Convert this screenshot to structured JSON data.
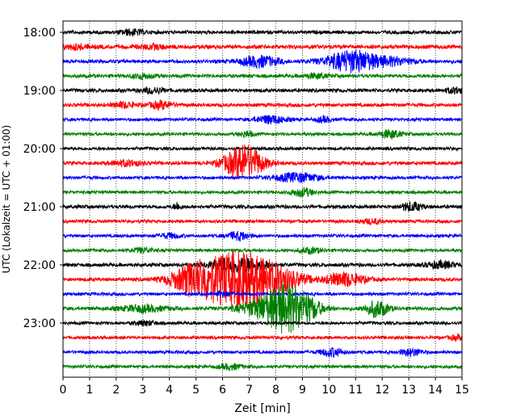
{
  "chart_data": {
    "type": "line",
    "title": "",
    "xlabel": "Zeit  [min]",
    "ylabel": "UTC (Lokalzeit = UTC + 01:00)",
    "xlim": [
      0,
      15
    ],
    "x_ticks": [
      0,
      1,
      2,
      3,
      4,
      5,
      6,
      7,
      8,
      9,
      10,
      11,
      12,
      13,
      14,
      15
    ],
    "x_tick_labels": [
      "0",
      "1",
      "2",
      "3",
      "4",
      "5",
      "6",
      "7",
      "8",
      "9",
      "10",
      "11",
      "12",
      "13",
      "14",
      "15"
    ],
    "y_tick_labels": [
      "18:00",
      "19:00",
      "20:00",
      "21:00",
      "22:00",
      "23:00"
    ],
    "grid": {
      "x": true,
      "style": "dotted"
    },
    "row_colors": [
      "#000000",
      "#ff0000",
      "#0000ff",
      "#008000"
    ],
    "traces": [
      {
        "time": "18:00",
        "noise": 0.3,
        "bursts": [
          [
            2.6,
            0.6,
            0.3
          ]
        ]
      },
      {
        "time": "18:15",
        "noise": 0.35,
        "bursts": [
          [
            0.5,
            0.5,
            0.3
          ],
          [
            3.4,
            0.4,
            0.4
          ]
        ]
      },
      {
        "time": "18:30",
        "noise": 0.3,
        "bursts": [
          [
            7.4,
            1.2,
            0.5
          ],
          [
            10.9,
            2.4,
            0.7
          ],
          [
            12.5,
            0.7,
            0.5
          ]
        ]
      },
      {
        "time": "18:45",
        "noise": 0.3,
        "bursts": [
          [
            3.0,
            0.5,
            0.3
          ],
          [
            9.5,
            0.5,
            0.3
          ]
        ]
      },
      {
        "time": "19:00",
        "noise": 0.3,
        "bursts": [
          [
            3.4,
            0.6,
            0.3
          ],
          [
            14.8,
            0.6,
            0.3
          ]
        ]
      },
      {
        "time": "19:15",
        "noise": 0.3,
        "bursts": [
          [
            2.3,
            0.6,
            0.3
          ],
          [
            3.7,
            0.8,
            0.3
          ]
        ]
      },
      {
        "time": "19:30",
        "noise": 0.25,
        "bursts": [
          [
            7.8,
            0.9,
            0.4
          ],
          [
            9.8,
            0.6,
            0.2
          ]
        ]
      },
      {
        "time": "19:45",
        "noise": 0.25,
        "bursts": [
          [
            6.9,
            0.6,
            0.2
          ],
          [
            12.3,
            0.9,
            0.3
          ]
        ]
      },
      {
        "time": "20:00",
        "noise": 0.25,
        "bursts": []
      },
      {
        "time": "20:15",
        "noise": 0.3,
        "bursts": [
          [
            2.4,
            0.6,
            0.4
          ],
          [
            6.8,
            4.0,
            0.5
          ]
        ]
      },
      {
        "time": "20:30",
        "noise": 0.25,
        "bursts": [
          [
            8.8,
            1.0,
            0.6
          ]
        ]
      },
      {
        "time": "20:45",
        "noise": 0.25,
        "bursts": [
          [
            9.0,
            0.9,
            0.3
          ]
        ]
      },
      {
        "time": "21:00",
        "noise": 0.3,
        "bursts": [
          [
            4.3,
            0.8,
            0.1
          ],
          [
            13.1,
            0.9,
            0.3
          ]
        ]
      },
      {
        "time": "21:15",
        "noise": 0.25,
        "bursts": [
          [
            11.6,
            0.5,
            0.3
          ]
        ]
      },
      {
        "time": "21:30",
        "noise": 0.25,
        "bursts": [
          [
            4.0,
            0.5,
            0.3
          ],
          [
            6.6,
            0.9,
            0.3
          ]
        ]
      },
      {
        "time": "21:45",
        "noise": 0.25,
        "bursts": [
          [
            3.0,
            0.5,
            0.3
          ],
          [
            9.3,
            0.6,
            0.3
          ]
        ]
      },
      {
        "time": "22:00",
        "noise": 0.3,
        "bursts": [
          [
            6.2,
            1.4,
            0.5
          ],
          [
            7.1,
            1.0,
            0.5
          ],
          [
            14.2,
            0.7,
            0.4
          ]
        ]
      },
      {
        "time": "22:15",
        "noise": 0.3,
        "bursts": [
          [
            4.7,
            1.8,
            0.5
          ],
          [
            6.0,
            5.0,
            0.9
          ],
          [
            7.2,
            3.5,
            0.6
          ],
          [
            8.3,
            2.0,
            0.6
          ],
          [
            10.6,
            1.5,
            0.5
          ]
        ]
      },
      {
        "time": "22:30",
        "noise": 0.25,
        "bursts": [
          [
            6.0,
            0.5,
            0.3
          ]
        ]
      },
      {
        "time": "22:45",
        "noise": 0.3,
        "bursts": [
          [
            3.0,
            0.7,
            0.6
          ],
          [
            7.7,
            2.2,
            0.7
          ],
          [
            8.4,
            3.8,
            0.5
          ],
          [
            9.2,
            2.0,
            0.4
          ],
          [
            11.8,
            1.8,
            0.3
          ]
        ]
      },
      {
        "time": "23:00",
        "noise": 0.25,
        "bursts": [
          [
            3.1,
            0.5,
            0.3
          ]
        ]
      },
      {
        "time": "23:15",
        "noise": 0.25,
        "bursts": [
          [
            14.8,
            0.5,
            0.2
          ]
        ]
      },
      {
        "time": "23:30",
        "noise": 0.25,
        "bursts": [
          [
            10.1,
            0.9,
            0.3
          ],
          [
            13.1,
            0.8,
            0.3
          ]
        ]
      },
      {
        "time": "23:45",
        "noise": 0.25,
        "bursts": [
          [
            6.3,
            0.6,
            0.3
          ]
        ]
      }
    ]
  }
}
